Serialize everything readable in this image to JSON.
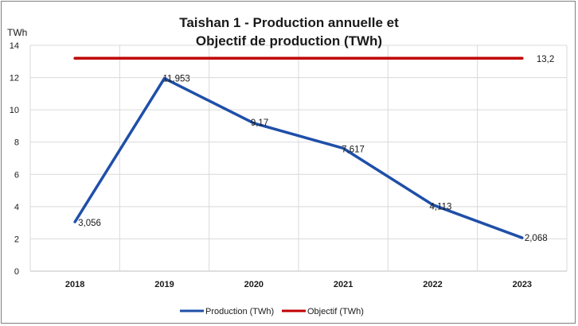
{
  "chart_data": {
    "type": "line",
    "title": [
      "Taishan 1 - Production annuelle  et",
      "Objectif de production (TWh)"
    ],
    "ylabel": "TWh",
    "xlabel": "",
    "categories": [
      "2018",
      "2019",
      "2020",
      "2021",
      "2022",
      "2023"
    ],
    "ylim": [
      0,
      14
    ],
    "yticks": [
      "0",
      "2",
      "4",
      "6",
      "8",
      "10",
      "12",
      "14"
    ],
    "grid": true,
    "legend_position": "bottom",
    "series": [
      {
        "name": "Production (TWh)",
        "color": "#1f4fa8",
        "values": [
          3.056,
          11.953,
          9.17,
          7.617,
          4.113,
          2.068
        ],
        "labels": [
          "3,056",
          "11,953",
          "9,17",
          "7,617",
          "4,113",
          "2,068"
        ]
      },
      {
        "name": "Objectif (TWh)",
        "color": "#c00000",
        "values": [
          13.2,
          13.2,
          13.2,
          13.2,
          13.2,
          13.2
        ],
        "labels": [
          "",
          "",
          "",
          "",
          "",
          "13,2"
        ]
      }
    ]
  }
}
